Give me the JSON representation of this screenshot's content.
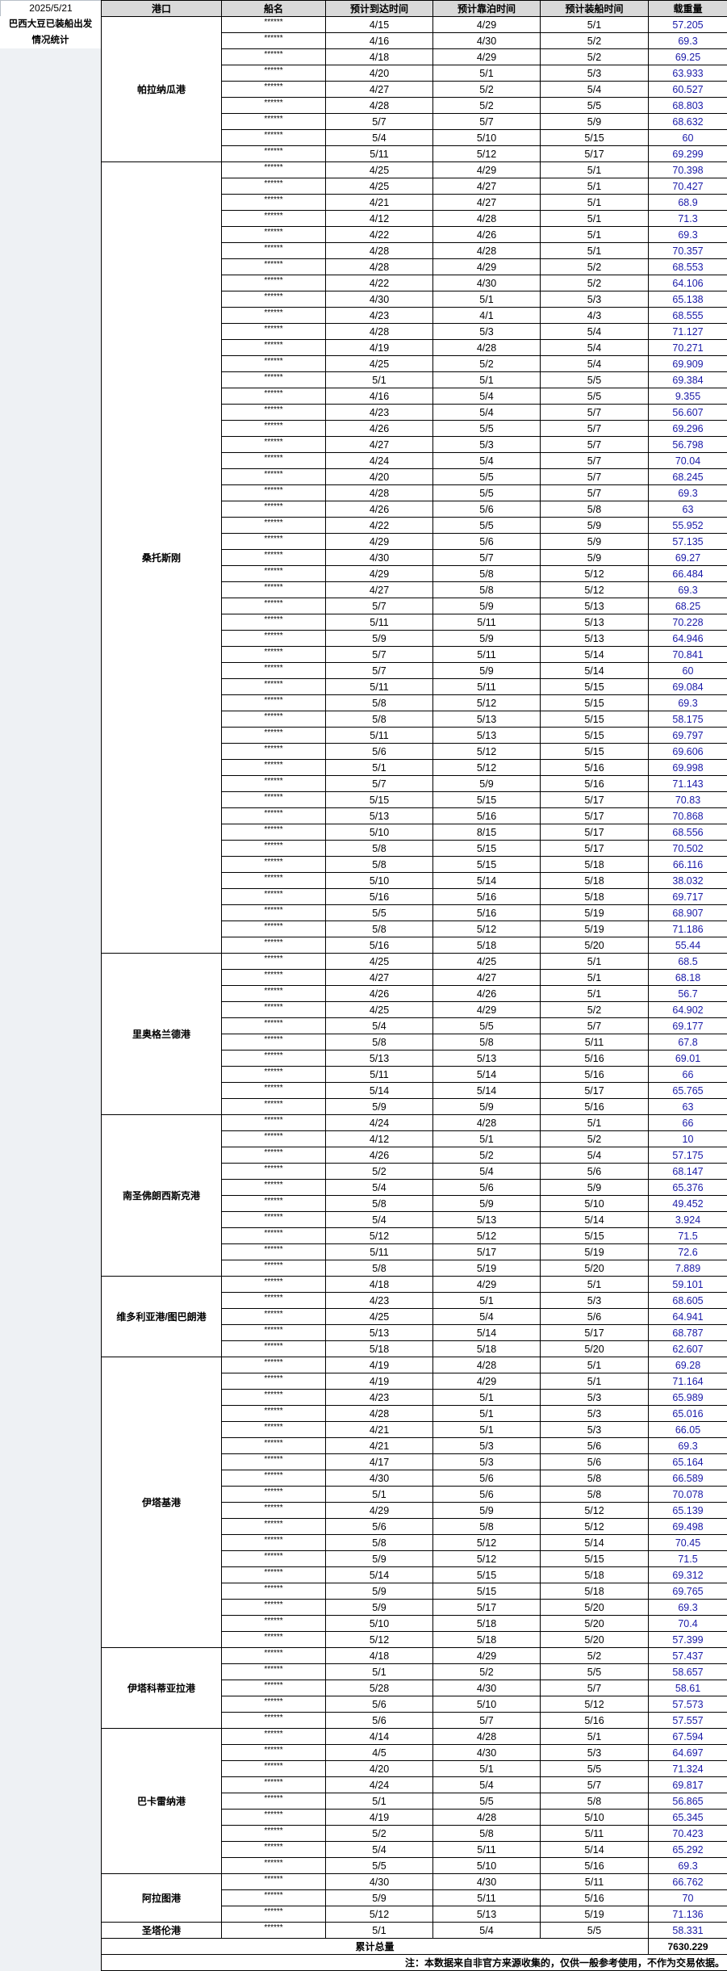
{
  "report_date": "2025/5/21",
  "title_line1": "巴西大豆已装船出发",
  "title_line2": "情况统计",
  "headers": [
    "港口",
    "船名",
    "预计到达时间",
    "预计靠泊时间",
    "预计装船时间",
    "载重量"
  ],
  "colors": {
    "header_bg": "#d9d9d9",
    "weight_text": "#1a1aa8"
  },
  "ports": [
    {
      "name": "帕拉纳瓜港",
      "ships": [
        [
          "******",
          "4/15",
          "4/29",
          "5/1",
          "57.205"
        ],
        [
          "******",
          "4/16",
          "4/30",
          "5/2",
          "69.3"
        ],
        [
          "******",
          "4/18",
          "4/29",
          "5/2",
          "69.25"
        ],
        [
          "******",
          "4/20",
          "5/1",
          "5/3",
          "63.933"
        ],
        [
          "******",
          "4/27",
          "5/2",
          "5/4",
          "60.527"
        ],
        [
          "******",
          "4/28",
          "5/2",
          "5/5",
          "68.803"
        ],
        [
          "******",
          "5/7",
          "5/7",
          "5/9",
          "68.632"
        ],
        [
          "******",
          "5/4",
          "5/10",
          "5/15",
          "60"
        ],
        [
          "******",
          "5/11",
          "5/12",
          "5/17",
          "69.299"
        ]
      ]
    },
    {
      "name": "桑托斯刚",
      "ships": [
        [
          "******",
          "4/25",
          "4/29",
          "5/1",
          "70.398"
        ],
        [
          "******",
          "4/25",
          "4/27",
          "5/1",
          "70.427"
        ],
        [
          "******",
          "4/21",
          "4/27",
          "5/1",
          "68.9"
        ],
        [
          "******",
          "4/12",
          "4/28",
          "5/1",
          "71.3"
        ],
        [
          "******",
          "4/22",
          "4/26",
          "5/1",
          "69.3"
        ],
        [
          "******",
          "4/28",
          "4/28",
          "5/1",
          "70.357"
        ],
        [
          "******",
          "4/28",
          "4/29",
          "5/2",
          "68.553"
        ],
        [
          "******",
          "4/22",
          "4/30",
          "5/2",
          "64.106"
        ],
        [
          "******",
          "4/30",
          "5/1",
          "5/3",
          "65.138"
        ],
        [
          "******",
          "4/23",
          "4/1",
          "4/3",
          "68.555"
        ],
        [
          "******",
          "4/28",
          "5/3",
          "5/4",
          "71.127"
        ],
        [
          "******",
          "4/19",
          "4/28",
          "5/4",
          "70.271"
        ],
        [
          "******",
          "4/25",
          "5/2",
          "5/4",
          "69.909"
        ],
        [
          "******",
          "5/1",
          "5/1",
          "5/5",
          "69.384"
        ],
        [
          "******",
          "4/16",
          "5/4",
          "5/5",
          "9.355"
        ],
        [
          "******",
          "4/23",
          "5/4",
          "5/7",
          "56.607"
        ],
        [
          "******",
          "4/26",
          "5/5",
          "5/7",
          "69.296"
        ],
        [
          "******",
          "4/27",
          "5/3",
          "5/7",
          "56.798"
        ],
        [
          "******",
          "4/24",
          "5/4",
          "5/7",
          "70.04"
        ],
        [
          "******",
          "4/20",
          "5/5",
          "5/7",
          "68.245"
        ],
        [
          "******",
          "4/28",
          "5/5",
          "5/7",
          "69.3"
        ],
        [
          "******",
          "4/26",
          "5/6",
          "5/8",
          "63"
        ],
        [
          "******",
          "4/22",
          "5/5",
          "5/9",
          "55.952"
        ],
        [
          "******",
          "4/29",
          "5/6",
          "5/9",
          "57.135"
        ],
        [
          "******",
          "4/30",
          "5/7",
          "5/9",
          "69.27"
        ],
        [
          "******",
          "4/29",
          "5/8",
          "5/12",
          "66.484"
        ],
        [
          "******",
          "4/27",
          "5/8",
          "5/12",
          "69.3"
        ],
        [
          "******",
          "5/7",
          "5/9",
          "5/13",
          "68.25"
        ],
        [
          "******",
          "5/11",
          "5/11",
          "5/13",
          "70.228"
        ],
        [
          "******",
          "5/9",
          "5/9",
          "5/13",
          "64.946"
        ],
        [
          "******",
          "5/7",
          "5/11",
          "5/14",
          "70.841"
        ],
        [
          "******",
          "5/7",
          "5/9",
          "5/14",
          "60"
        ],
        [
          "******",
          "5/11",
          "5/11",
          "5/15",
          "69.084"
        ],
        [
          "******",
          "5/8",
          "5/12",
          "5/15",
          "69.3"
        ],
        [
          "******",
          "5/8",
          "5/13",
          "5/15",
          "58.175"
        ],
        [
          "******",
          "5/11",
          "5/13",
          "5/15",
          "69.797"
        ],
        [
          "******",
          "5/6",
          "5/12",
          "5/15",
          "69.606"
        ],
        [
          "******",
          "5/1",
          "5/12",
          "5/16",
          "69.998"
        ],
        [
          "******",
          "5/7",
          "5/9",
          "5/16",
          "71.143"
        ],
        [
          "******",
          "5/15",
          "5/15",
          "5/17",
          "70.83"
        ],
        [
          "******",
          "5/13",
          "5/16",
          "5/17",
          "70.868"
        ],
        [
          "******",
          "5/10",
          "8/15",
          "5/17",
          "68.556"
        ],
        [
          "******",
          "5/8",
          "5/15",
          "5/17",
          "70.502"
        ],
        [
          "******",
          "5/8",
          "5/15",
          "5/18",
          "66.116"
        ],
        [
          "******",
          "5/10",
          "5/14",
          "5/18",
          "38.032"
        ],
        [
          "******",
          "5/16",
          "5/16",
          "5/18",
          "69.717"
        ],
        [
          "******",
          "5/5",
          "5/16",
          "5/19",
          "68.907"
        ],
        [
          "******",
          "5/8",
          "5/12",
          "5/19",
          "71.186"
        ],
        [
          "******",
          "5/16",
          "5/18",
          "5/20",
          "55.44"
        ]
      ]
    },
    {
      "name": "里奥格兰德港",
      "ships": [
        [
          "******",
          "4/25",
          "4/25",
          "5/1",
          "68.5"
        ],
        [
          "******",
          "4/27",
          "4/27",
          "5/1",
          "68.18"
        ],
        [
          "******",
          "4/26",
          "4/26",
          "5/1",
          "56.7"
        ],
        [
          "******",
          "4/25",
          "4/29",
          "5/2",
          "64.902"
        ],
        [
          "******",
          "5/4",
          "5/5",
          "5/7",
          "69.177"
        ],
        [
          "******",
          "5/8",
          "5/8",
          "5/11",
          "67.8"
        ],
        [
          "******",
          "5/13",
          "5/13",
          "5/16",
          "69.01"
        ],
        [
          "******",
          "5/11",
          "5/14",
          "5/16",
          "66"
        ],
        [
          "******",
          "5/14",
          "5/14",
          "5/17",
          "65.765"
        ],
        [
          "******",
          "5/9",
          "5/9",
          "5/16",
          "63"
        ]
      ]
    },
    {
      "name": "南圣佛朗西斯克港",
      "ships": [
        [
          "******",
          "4/24",
          "4/28",
          "5/1",
          "66"
        ],
        [
          "******",
          "4/12",
          "5/1",
          "5/2",
          "10"
        ],
        [
          "******",
          "4/26",
          "5/2",
          "5/4",
          "57.175"
        ],
        [
          "******",
          "5/2",
          "5/4",
          "5/6",
          "68.147"
        ],
        [
          "******",
          "5/4",
          "5/6",
          "5/9",
          "65.376"
        ],
        [
          "******",
          "5/8",
          "5/9",
          "5/10",
          "49.452"
        ],
        [
          "******",
          "5/4",
          "5/13",
          "5/14",
          "3.924"
        ],
        [
          "******",
          "5/12",
          "5/12",
          "5/15",
          "71.5"
        ],
        [
          "******",
          "5/11",
          "5/17",
          "5/19",
          "72.6"
        ],
        [
          "******",
          "5/8",
          "5/19",
          "5/20",
          "7.889"
        ]
      ]
    },
    {
      "name": "维多利亚港/图巴朗港",
      "ships": [
        [
          "******",
          "4/18",
          "4/29",
          "5/1",
          "59.101"
        ],
        [
          "******",
          "4/23",
          "5/1",
          "5/3",
          "68.605"
        ],
        [
          "******",
          "4/25",
          "5/4",
          "5/6",
          "64.941"
        ],
        [
          "******",
          "5/13",
          "5/14",
          "5/17",
          "68.787"
        ],
        [
          "******",
          "5/18",
          "5/18",
          "5/20",
          "62.607"
        ]
      ]
    },
    {
      "name": "伊塔基港",
      "ships": [
        [
          "******",
          "4/19",
          "4/28",
          "5/1",
          "69.28"
        ],
        [
          "******",
          "4/19",
          "4/29",
          "5/1",
          "71.164"
        ],
        [
          "******",
          "4/23",
          "5/1",
          "5/3",
          "65.989"
        ],
        [
          "******",
          "4/28",
          "5/1",
          "5/3",
          "65.016"
        ],
        [
          "******",
          "4/21",
          "5/1",
          "5/3",
          "66.05"
        ],
        [
          "******",
          "4/21",
          "5/3",
          "5/6",
          "69.3"
        ],
        [
          "******",
          "4/17",
          "5/3",
          "5/6",
          "65.164"
        ],
        [
          "******",
          "4/30",
          "5/6",
          "5/8",
          "66.589"
        ],
        [
          "******",
          "5/1",
          "5/6",
          "5/8",
          "70.078"
        ],
        [
          "******",
          "4/29",
          "5/9",
          "5/12",
          "65.139"
        ],
        [
          "******",
          "5/6",
          "5/8",
          "5/12",
          "69.498"
        ],
        [
          "******",
          "5/8",
          "5/12",
          "5/14",
          "70.45"
        ],
        [
          "******",
          "5/9",
          "5/12",
          "5/15",
          "71.5"
        ],
        [
          "******",
          "5/14",
          "5/15",
          "5/18",
          "69.312"
        ],
        [
          "******",
          "5/9",
          "5/15",
          "5/18",
          "69.765"
        ],
        [
          "******",
          "5/9",
          "5/17",
          "5/20",
          "69.3"
        ],
        [
          "******",
          "5/10",
          "5/18",
          "5/20",
          "70.4"
        ],
        [
          "******",
          "5/12",
          "5/18",
          "5/20",
          "57.399"
        ]
      ]
    },
    {
      "name": "伊塔科蒂亚拉港",
      "ships": [
        [
          "******",
          "4/18",
          "4/29",
          "5/2",
          "57.437"
        ],
        [
          "******",
          "5/1",
          "5/2",
          "5/5",
          "58.657"
        ],
        [
          "******",
          "5/28",
          "4/30",
          "5/7",
          "58.61"
        ],
        [
          "******",
          "5/6",
          "5/10",
          "5/12",
          "57.573"
        ],
        [
          "******",
          "5/6",
          "5/7",
          "5/16",
          "57.557"
        ]
      ]
    },
    {
      "name": "巴卡雷纳港",
      "ships": [
        [
          "******",
          "4/14",
          "4/28",
          "5/1",
          "67.594"
        ],
        [
          "******",
          "4/5",
          "4/30",
          "5/3",
          "64.697"
        ],
        [
          "******",
          "4/20",
          "5/1",
          "5/5",
          "71.324"
        ],
        [
          "******",
          "4/24",
          "5/4",
          "5/7",
          "69.817"
        ],
        [
          "******",
          "5/1",
          "5/5",
          "5/8",
          "56.865"
        ],
        [
          "******",
          "4/19",
          "4/28",
          "5/10",
          "65.345"
        ],
        [
          "******",
          "5/2",
          "5/8",
          "5/11",
          "70.423"
        ],
        [
          "******",
          "5/4",
          "5/11",
          "5/14",
          "65.292"
        ],
        [
          "******",
          "5/5",
          "5/10",
          "5/16",
          "69.3"
        ]
      ]
    },
    {
      "name": "阿拉图港",
      "ships": [
        [
          "******",
          "4/30",
          "4/30",
          "5/11",
          "66.762"
        ],
        [
          "******",
          "5/9",
          "5/11",
          "5/16",
          "70"
        ],
        [
          "******",
          "5/12",
          "5/13",
          "5/19",
          "71.136"
        ]
      ]
    },
    {
      "name": "圣塔伦港",
      "ships": [
        [
          "******",
          "5/1",
          "5/4",
          "5/5",
          "58.331"
        ]
      ]
    }
  ],
  "total_label": "累计总量",
  "total_value": "7630.229",
  "note": "注：本数据来自非官方来源收集的，仅供一般参考使用，不作为交易依据。"
}
